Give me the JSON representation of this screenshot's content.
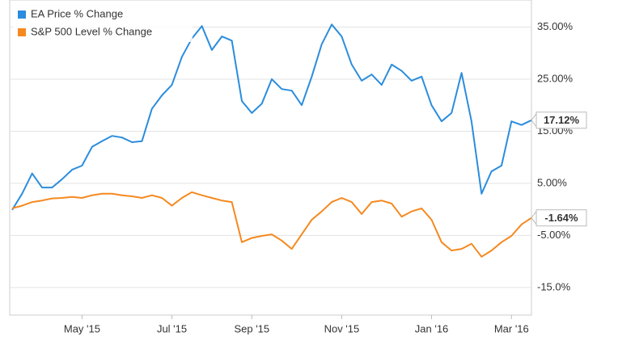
{
  "chart_data": {
    "type": "line",
    "categories": [
      null,
      null,
      null,
      null,
      null,
      null,
      null,
      "May '15",
      null,
      null,
      null,
      null,
      null,
      null,
      null,
      null,
      "Jul '15",
      null,
      null,
      null,
      null,
      null,
      null,
      null,
      "Sep '15",
      null,
      null,
      null,
      null,
      null,
      null,
      null,
      null,
      "Nov '15",
      null,
      null,
      null,
      null,
      null,
      null,
      null,
      null,
      "Jan '16",
      null,
      null,
      null,
      null,
      null,
      null,
      null,
      "Mar '16",
      null,
      null
    ],
    "series": [
      {
        "name": "EA Price % Change",
        "color": "#2b8ddd",
        "values": [
          -0.1,
          3.0,
          6.9,
          4.2,
          4.2,
          5.8,
          7.6,
          8.4,
          12.0,
          13.1,
          14.1,
          13.8,
          12.9,
          13.1,
          19.3,
          21.9,
          23.9,
          29.3,
          32.8,
          35.2,
          30.6,
          33.2,
          32.4,
          20.8,
          18.5,
          20.3,
          25.0,
          23.1,
          22.8,
          20.0,
          25.5,
          31.7,
          35.5,
          33.2,
          27.8,
          24.7,
          25.9,
          23.9,
          27.8,
          26.6,
          24.7,
          25.5,
          20.0,
          16.9,
          18.5,
          26.2,
          16.9,
          3.0,
          7.3,
          8.4,
          16.9,
          16.2,
          17.12
        ],
        "value_labels": [
          null,
          null,
          null,
          null,
          null,
          null,
          null,
          null,
          null,
          null,
          null,
          null,
          null,
          null,
          null,
          null,
          null,
          null,
          null,
          null,
          null,
          null,
          null,
          null,
          null,
          null,
          null,
          null,
          null,
          null,
          null,
          null,
          null,
          null,
          null,
          null,
          null,
          null,
          null,
          null,
          null,
          null,
          null,
          null,
          null,
          null,
          null,
          null,
          null,
          null,
          null,
          null,
          "17.12%"
        ]
      },
      {
        "name": "S&P 500 Level % Change",
        "color": "#f5891f",
        "values": [
          0.2,
          0.7,
          1.4,
          1.7,
          2.1,
          2.2,
          2.4,
          2.2,
          2.7,
          3.0,
          3.0,
          2.7,
          2.5,
          2.2,
          2.7,
          2.2,
          0.7,
          2.2,
          3.3,
          2.7,
          2.2,
          1.7,
          1.4,
          -6.3,
          -5.5,
          -5.1,
          -4.8,
          -6.0,
          -7.6,
          -4.8,
          -2.0,
          -0.4,
          1.4,
          2.2,
          1.4,
          -0.9,
          1.4,
          1.7,
          1.1,
          -1.4,
          -0.4,
          0.2,
          -2.0,
          -6.3,
          -7.9,
          -7.6,
          -6.6,
          -9.1,
          -7.9,
          -6.3,
          -5.1,
          -2.9,
          -1.64
        ],
        "value_labels": [
          null,
          null,
          null,
          null,
          null,
          null,
          null,
          null,
          null,
          null,
          null,
          null,
          null,
          null,
          null,
          null,
          null,
          null,
          null,
          null,
          null,
          null,
          null,
          null,
          null,
          null,
          null,
          null,
          null,
          null,
          null,
          null,
          null,
          null,
          null,
          null,
          null,
          null,
          null,
          null,
          null,
          null,
          null,
          null,
          null,
          null,
          null,
          null,
          null,
          null,
          null,
          null,
          "-1.64%"
        ]
      }
    ],
    "ylim": [
      -20.3,
      40.2
    ],
    "yticks": [
      {
        "value": -15,
        "label": "-15.0%"
      },
      {
        "value": -5,
        "label": "-5.00%"
      },
      {
        "value": 5,
        "label": "5.00%"
      },
      {
        "value": 15,
        "label": "15.00%"
      },
      {
        "value": 25,
        "label": "25.00%"
      },
      {
        "value": 35,
        "label": "35.00%"
      }
    ],
    "grid": true,
    "legend": "top-left"
  }
}
